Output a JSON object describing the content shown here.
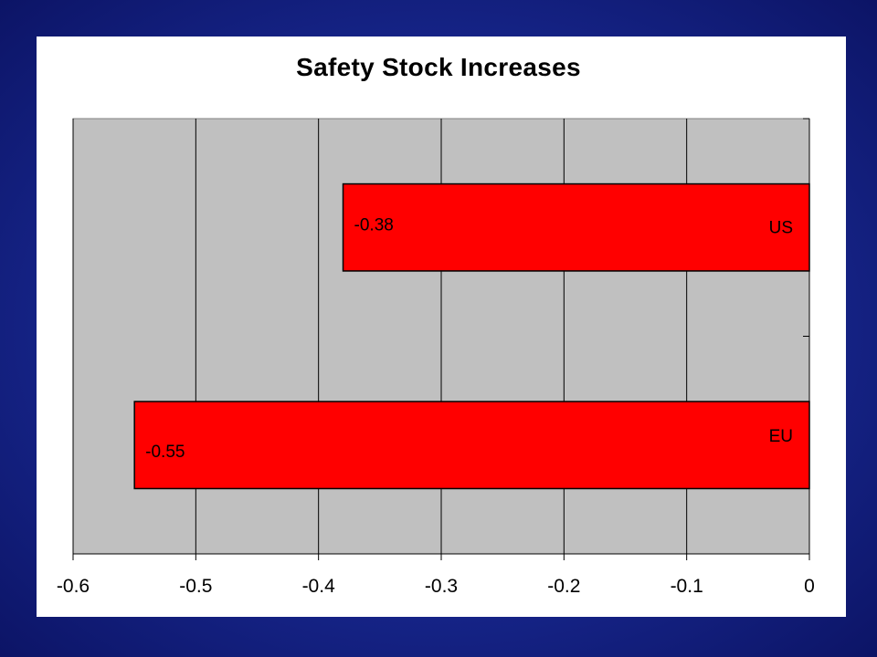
{
  "colors": {
    "background": "#17268c",
    "plot_area": "#c0c0c0",
    "bar": "#ff0000"
  },
  "chart_data": {
    "type": "bar",
    "orientation": "horizontal",
    "title": "Safety Stock Increases",
    "xlabel": "",
    "ylabel": "",
    "categories": [
      "US",
      "EU"
    ],
    "values": [
      -0.38,
      -0.55
    ],
    "data_labels": [
      "-0.38",
      "-0.55"
    ],
    "xlim": [
      -0.6,
      0
    ],
    "x_ticks": [
      -0.6,
      -0.5,
      -0.4,
      -0.3,
      -0.2,
      -0.1,
      0
    ],
    "x_tick_labels": [
      "-0.6",
      "-0.5",
      "-0.4",
      "-0.3",
      "-0.2",
      "-0.1",
      "0"
    ],
    "grid": true,
    "legend": "none"
  }
}
